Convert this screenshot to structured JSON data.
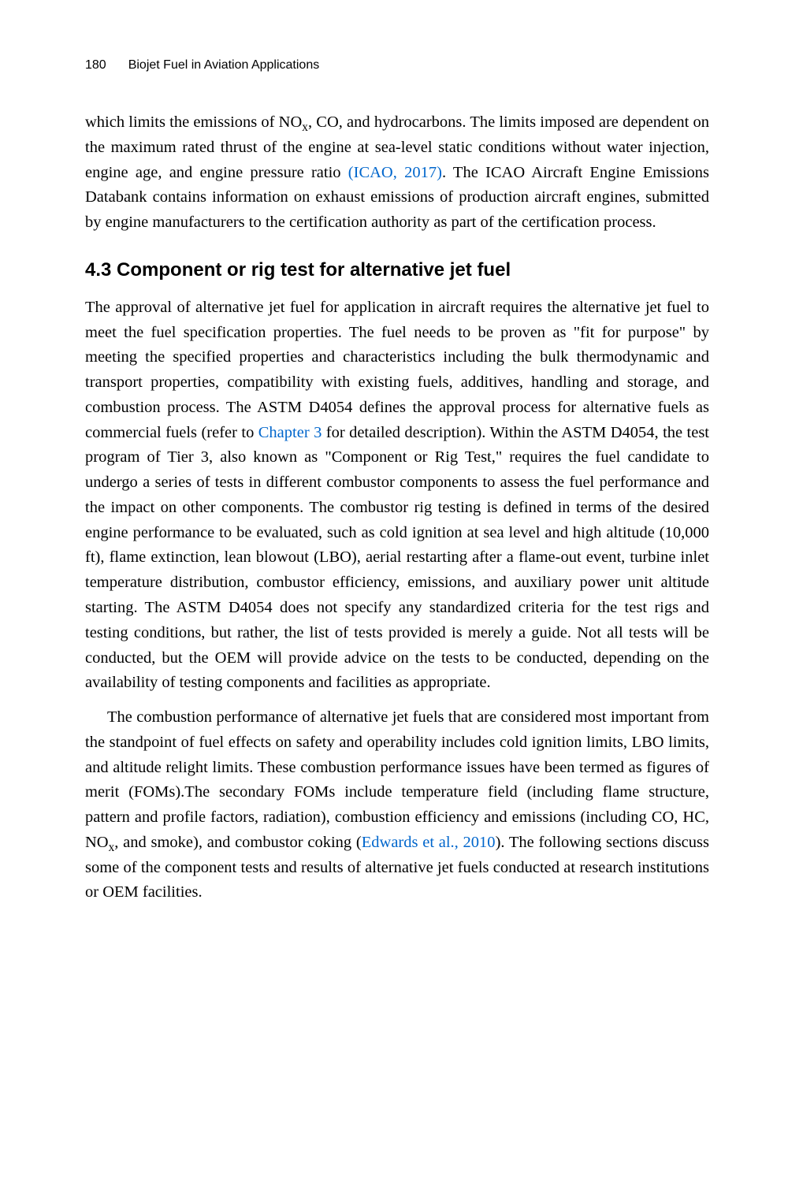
{
  "header": {
    "page_number": "180",
    "running_title": "Biojet Fuel in Aviation Applications"
  },
  "paragraph1": {
    "part1": "which limits the emissions of NO",
    "sub1": "x",
    "part2": ", CO, and hydrocarbons. The limits imposed are dependent on the maximum rated thrust of the engine at sea-level static conditions without water injection, engine age, and engine pressure ratio ",
    "citation1": "(ICAO, 2017)",
    "part3": ". The ICAO Aircraft Engine Emissions Databank contains information on exhaust emissions of production aircraft engines, submitted by engine manufacturers to the certification authority as part of the certification process."
  },
  "section": {
    "number": "4.3",
    "title": "Component or rig test for alternative jet fuel"
  },
  "paragraph2": {
    "part1": "The approval of alternative jet fuel for application in aircraft requires the alternative jet fuel to meet the fuel specification properties. The fuel needs to be proven as \"fit for purpose\" by meeting the specified properties and characteristics including the bulk thermodynamic and transport properties, compatibility with existing fuels, additives, handling and storage, and combustion process. The ASTM D4054 defines the approval process for alternative fuels as commercial fuels (refer to ",
    "citation1": "Chapter 3",
    "part2": " for detailed description). Within the ASTM D4054, the test program of Tier 3, also known as \"Component or Rig Test,\" requires the fuel candidate to undergo a series of tests in different combustor components to assess the fuel performance and the impact on other components. The combustor rig testing is defined in terms of the desired engine performance to be evaluated, such as cold ignition at sea level and high altitude (10,000 ft), flame extinction, lean blowout (LBO), aerial restarting after a flame-out event, turbine inlet temperature distribution, combustor efficiency, emissions, and auxiliary power unit altitude starting. The ASTM D4054 does not specify any standardized criteria for the test rigs and testing conditions, but rather, the list of tests provided is merely a guide. Not all tests will be conducted, but the OEM will provide advice on the tests to be conducted, depending on the availability of testing components and facilities as appropriate."
  },
  "paragraph3": {
    "part1": "The combustion performance of alternative jet fuels that are considered most important from the standpoint of fuel effects on safety and operability includes cold ignition limits, LBO limits, and altitude relight limits. These combustion performance issues have been termed as figures of merit (FOMs).The secondary FOMs include temperature field (including flame structure, pattern and profile factors, radiation), combustion efficiency and emissions (including CO, HC, NO",
    "sub1": "x",
    "part2": ", and smoke), and combustor coking (",
    "citation1": "Edwards et al., 2010",
    "part3": "). The following sections discuss some of the component tests and results of alternative jet fuels conducted at research institutions or OEM facilities."
  }
}
